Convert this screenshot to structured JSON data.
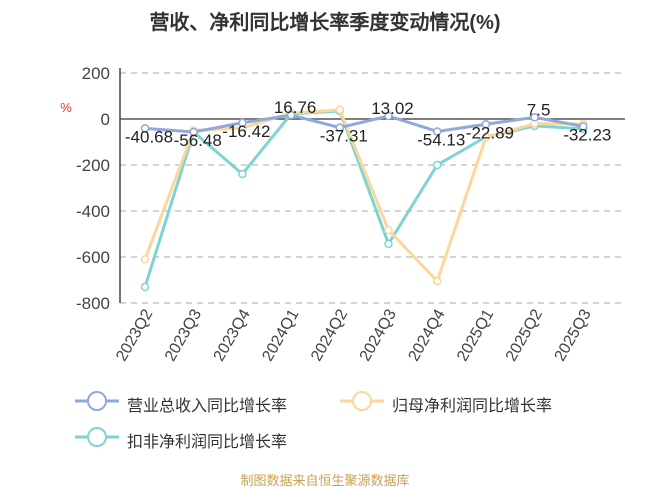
{
  "chart_data": {
    "type": "line",
    "title": "营收、净利同比增长率季度变动情况(%)",
    "ylabel": "%",
    "ylim": [
      -800,
      200
    ],
    "yticks": [
      200,
      0,
      -200,
      -400,
      -600,
      -800
    ],
    "grid": true,
    "legend_position": "bottom",
    "categories": [
      "2023Q2",
      "2023Q3",
      "2023Q4",
      "2024Q1",
      "2024Q2",
      "2024Q3",
      "2024Q4",
      "2025Q1",
      "2025Q2",
      "2025Q3"
    ],
    "series": [
      {
        "name": "营业总收入同比增长率",
        "color": "#8fa9d8",
        "values": [
          -40.68,
          -56.48,
          -16.42,
          16.76,
          -37.31,
          13.02,
          -54.13,
          -22.89,
          7.5,
          -32.23
        ],
        "labels": [
          "-40.68",
          "-56.48",
          "-16.42",
          "16.76",
          "-37.31",
          "13.02",
          "-54.13",
          "-22.89",
          "7.5",
          "-32.23"
        ]
      },
      {
        "name": "归母净利润同比增长率",
        "color": "#fcd79b",
        "values": [
          -610,
          -50,
          -39,
          25,
          40,
          -483,
          -705,
          -80,
          -20,
          -22
        ]
      },
      {
        "name": "扣非净利润同比增长率",
        "color": "#7fd3d3",
        "values": [
          -730,
          -57,
          -239,
          22,
          35,
          -543,
          -200,
          -78,
          -30,
          -43
        ]
      }
    ]
  },
  "source": "制图数据来自恒生聚源数据库"
}
